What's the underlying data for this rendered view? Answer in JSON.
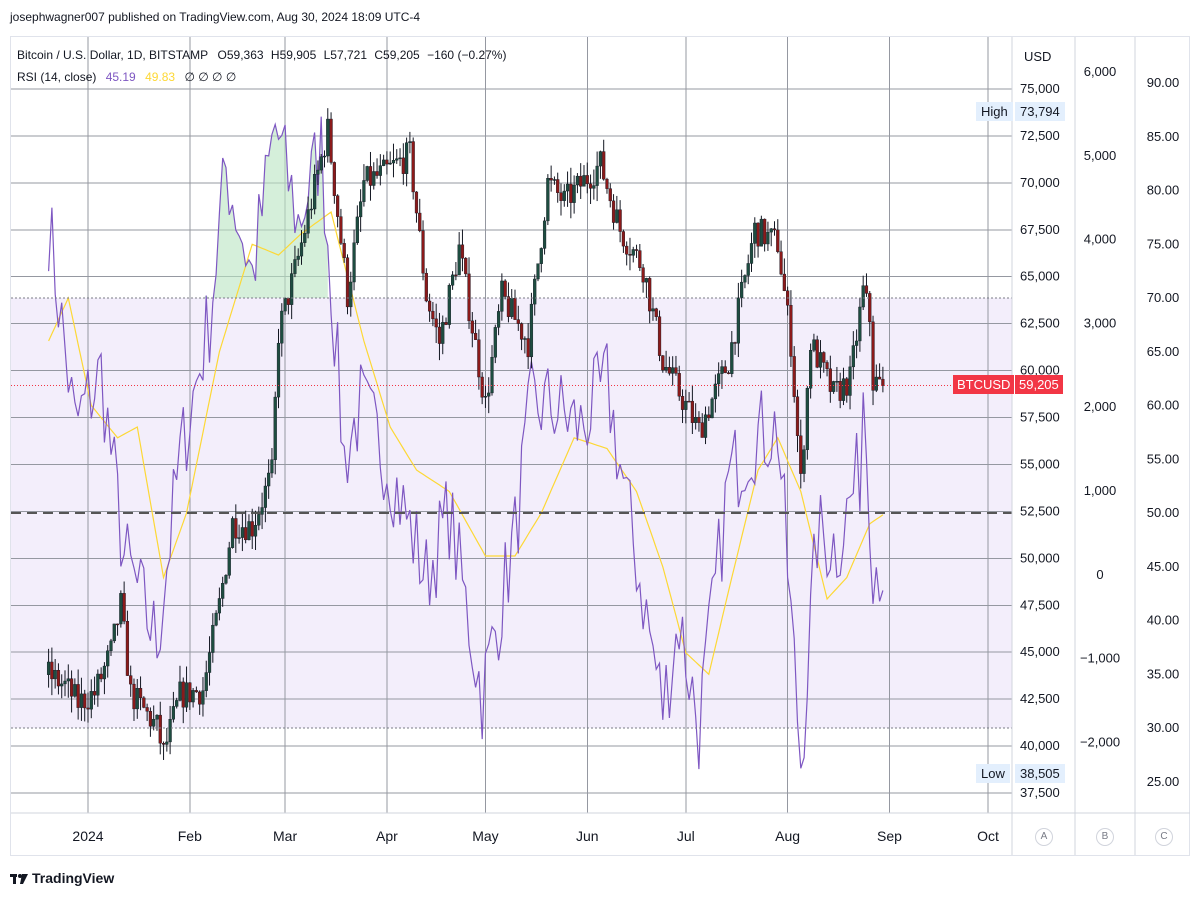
{
  "header": {
    "published": "josephwagner007 published on TradingView.com, Aug 30, 2024 18:09 UTC-4"
  },
  "legend": {
    "symbol": "Bitcoin / U.S. Dollar, 1D, BITSTAMP",
    "open": "O59,363",
    "high": "H59,905",
    "low": "L57,721",
    "close": "C59,205",
    "change": "−160 (−0.27%)",
    "rsi_label": "RSI (14, close)",
    "rsi_value": "45.19",
    "rsi_ma_value": "49.83",
    "extra_values": "∅ ∅ ∅ ∅"
  },
  "price_scale": {
    "currency": "USD",
    "ticks": [
      "75,000",
      "72,500",
      "70,000",
      "67,500",
      "65,000",
      "62,500",
      "60,000",
      "57,500",
      "55,000",
      "52,500",
      "50,000",
      "47,500",
      "45,000",
      "42,500",
      "40,000",
      "37,500"
    ],
    "high_label": "High",
    "high_value": "73,794",
    "low_label": "Low",
    "low_value": "38,505",
    "current_symbol": "BTCUSD",
    "current_value": "59,205"
  },
  "scale_b": {
    "ticks": [
      "6,000",
      "5,000",
      "4,000",
      "3,000",
      "2,000",
      "1,000",
      "0",
      "−1,000",
      "−2,000"
    ]
  },
  "scale_c": {
    "ticks": [
      "90.00",
      "85.00",
      "80.00",
      "75.00",
      "70.00",
      "65.00",
      "60.00",
      "55.00",
      "50.00",
      "45.00",
      "40.00",
      "35.00",
      "30.00",
      "25.00"
    ]
  },
  "time_axis": {
    "labels": [
      "2024",
      "Feb",
      "Mar",
      "Apr",
      "May",
      "Jun",
      "Jul",
      "Aug",
      "Sep",
      "Oct"
    ]
  },
  "scale_buttons": [
    "A",
    "B",
    "C"
  ],
  "footer": {
    "brand": "TradingView"
  },
  "colors": {
    "up": "#26a69a",
    "candle_up_body": "#1e4d40",
    "candle_down": "#8b1a1a",
    "rsi_line": "#7e57c2",
    "rsi_ma": "#fdd835",
    "rsi_band_fill": "#f3eefb",
    "current_price": "#f23645",
    "grid": "#9598a1"
  },
  "chart_data": {
    "type": "candlestick",
    "title": "Bitcoin / U.S. Dollar, 1D, BITSTAMP",
    "ylim": [
      36500,
      76500
    ],
    "rsi_band": [
      30,
      70
    ],
    "rsi_mid": 50,
    "anchors": [
      [
        "2023-12-20",
        43800
      ],
      [
        "2023-12-25",
        43200
      ],
      [
        "2023-12-29",
        42300
      ],
      [
        "2024-01-03",
        42800
      ],
      [
        "2024-01-08",
        45000
      ],
      [
        "2024-01-11",
        47500
      ],
      [
        "2024-01-14",
        42800
      ],
      [
        "2024-01-22",
        41000
      ],
      [
        "2024-01-24",
        39600
      ],
      [
        "2024-01-29",
        42700
      ],
      [
        "2024-02-05",
        43000
      ],
      [
        "2024-02-10",
        47500
      ],
      [
        "2024-02-14",
        51900
      ],
      [
        "2024-02-20",
        51700
      ],
      [
        "2024-02-26",
        54500
      ],
      [
        "2024-02-28",
        62000
      ],
      [
        "2024-03-05",
        66000
      ],
      [
        "2024-03-09",
        69000
      ],
      [
        "2024-03-14",
        72800
      ],
      [
        "2024-03-20",
        64000
      ],
      [
        "2024-03-25",
        70000
      ],
      [
        "2024-03-31",
        70500
      ],
      [
        "2024-04-08",
        71500
      ],
      [
        "2024-04-13",
        64000
      ],
      [
        "2024-04-17",
        61500
      ],
      [
        "2024-04-23",
        66500
      ],
      [
        "2024-05-01",
        58200
      ],
      [
        "2024-05-06",
        64000
      ],
      [
        "2024-05-14",
        61500
      ],
      [
        "2024-05-20",
        70000
      ],
      [
        "2024-05-25",
        69000
      ],
      [
        "2024-06-05",
        71000
      ],
      [
        "2024-06-11",
        67500
      ],
      [
        "2024-06-18",
        65500
      ],
      [
        "2024-06-24",
        60500
      ],
      [
        "2024-07-05",
        56800
      ],
      [
        "2024-07-14",
        60500
      ],
      [
        "2024-07-22",
        67500
      ],
      [
        "2024-07-29",
        66800
      ],
      [
        "2024-08-02",
        61500
      ],
      [
        "2024-08-05",
        54000
      ],
      [
        "2024-08-08",
        61500
      ],
      [
        "2024-08-15",
        58700
      ],
      [
        "2024-08-20",
        59500
      ],
      [
        "2024-08-24",
        64200
      ],
      [
        "2024-08-26",
        62800
      ],
      [
        "2024-08-27",
        59400
      ],
      [
        "2024-08-30",
        59205
      ]
    ],
    "rsi_anchors": [
      [
        "2023-12-20",
        77
      ],
      [
        "2023-12-28",
        58
      ],
      [
        "2024-01-05",
        63
      ],
      [
        "2024-01-12",
        46
      ],
      [
        "2024-01-22",
        38
      ],
      [
        "2024-01-29",
        55
      ],
      [
        "2024-02-07",
        68
      ],
      [
        "2024-02-12",
        82
      ],
      [
        "2024-02-20",
        72
      ],
      [
        "2024-02-27",
        86
      ],
      [
        "2024-03-05",
        77
      ],
      [
        "2024-03-12",
        84
      ],
      [
        "2024-03-19",
        55
      ],
      [
        "2024-03-24",
        60
      ],
      [
        "2024-04-01",
        55
      ],
      [
        "2024-04-13",
        44
      ],
      [
        "2024-04-20",
        50
      ],
      [
        "2024-04-30",
        33
      ],
      [
        "2024-05-10",
        48
      ],
      [
        "2024-05-15",
        60
      ],
      [
        "2024-05-21",
        60
      ],
      [
        "2024-05-30",
        58
      ],
      [
        "2024-06-07",
        62
      ],
      [
        "2024-06-14",
        49
      ],
      [
        "2024-06-24",
        32
      ],
      [
        "2024-06-29",
        40
      ],
      [
        "2024-07-05",
        30
      ],
      [
        "2024-07-14",
        53
      ],
      [
        "2024-07-21",
        57
      ],
      [
        "2024-07-29",
        58
      ],
      [
        "2024-08-05",
        27
      ],
      [
        "2024-08-10",
        48
      ],
      [
        "2024-08-16",
        47
      ],
      [
        "2024-08-23",
        54
      ],
      [
        "2024-08-24",
        62
      ],
      [
        "2024-08-27",
        46
      ],
      [
        "2024-08-30",
        45.19
      ]
    ],
    "rsi_ma_anchors": [
      [
        "2023-12-20",
        66
      ],
      [
        "2023-12-26",
        70
      ],
      [
        "2024-01-02",
        60
      ],
      [
        "2024-01-10",
        57
      ],
      [
        "2024-01-16",
        58
      ],
      [
        "2024-01-24",
        44
      ],
      [
        "2024-01-31",
        50
      ],
      [
        "2024-02-10",
        65
      ],
      [
        "2024-02-20",
        75
      ],
      [
        "2024-02-28",
        74
      ],
      [
        "2024-03-06",
        76
      ],
      [
        "2024-03-15",
        78
      ],
      [
        "2024-03-25",
        66
      ],
      [
        "2024-04-02",
        58
      ],
      [
        "2024-04-10",
        54
      ],
      [
        "2024-04-20",
        52
      ],
      [
        "2024-05-01",
        46
      ],
      [
        "2024-05-10",
        46
      ],
      [
        "2024-05-18",
        50
      ],
      [
        "2024-05-28",
        57
      ],
      [
        "2024-06-07",
        56
      ],
      [
        "2024-06-16",
        52
      ],
      [
        "2024-06-24",
        45
      ],
      [
        "2024-07-01",
        37
      ],
      [
        "2024-07-08",
        35
      ],
      [
        "2024-07-15",
        44
      ],
      [
        "2024-07-23",
        54
      ],
      [
        "2024-07-29",
        57
      ],
      [
        "2024-08-05",
        52
      ],
      [
        "2024-08-13",
        42
      ],
      [
        "2024-08-19",
        44
      ],
      [
        "2024-08-26",
        49
      ],
      [
        "2024-08-30",
        49.83
      ]
    ]
  }
}
